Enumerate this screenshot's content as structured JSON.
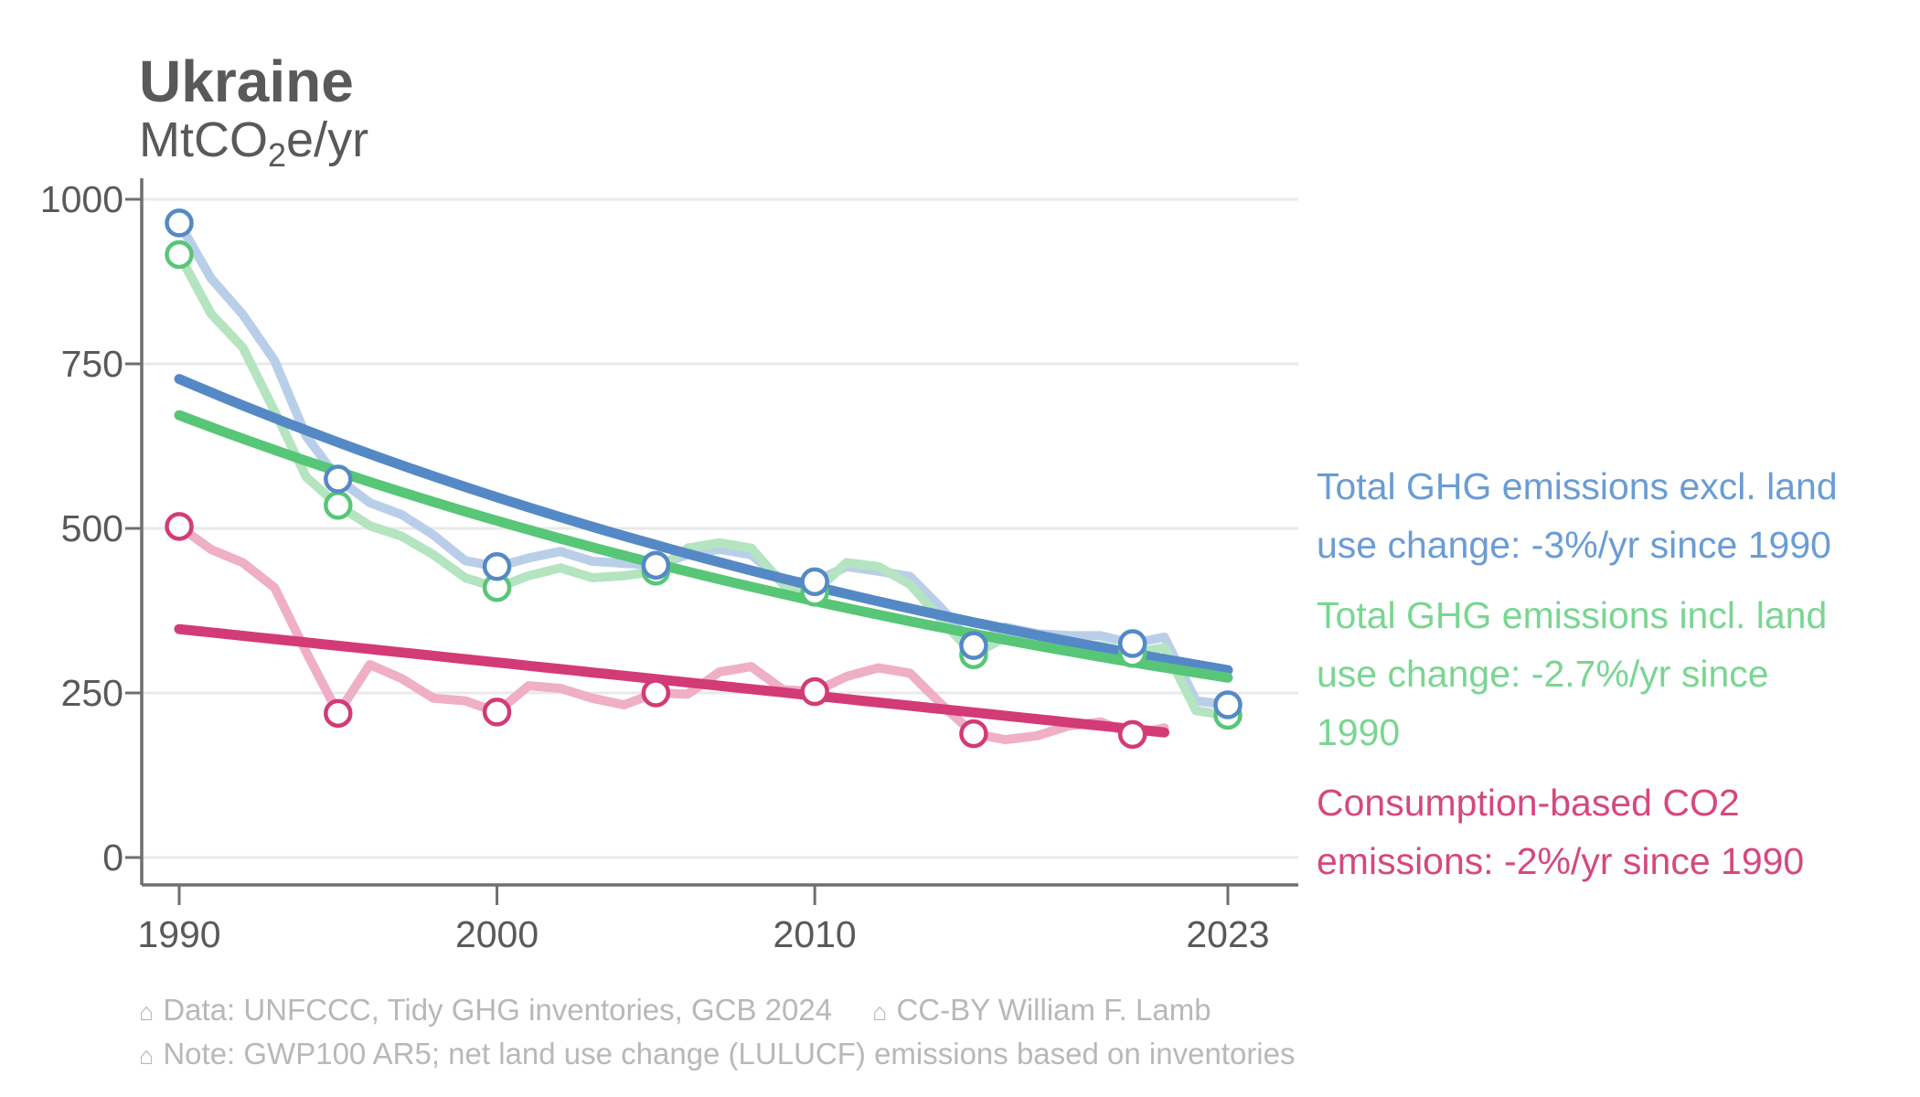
{
  "title": "Ukraine",
  "subtitle": {
    "prefix": "MtCO",
    "sub": "2",
    "suffix": "e/yr"
  },
  "colors": {
    "blue_trend": "#5589c6",
    "blue_light": "#b9cfe9",
    "blue_text": "#6a9cd4",
    "green_trend": "#57c677",
    "green_light": "#b4e4c0",
    "green_text": "#79d691",
    "pink_trend": "#d23b76",
    "pink_light": "#efafc7",
    "pink_text": "#d5487e",
    "axis_line": "#6f6f6f",
    "gridline": "#e9e9e9",
    "tick_label": "#595959",
    "title_text": "#595959",
    "footer_text": "#b8b8b8"
  },
  "legend": {
    "entries": [
      {
        "id": "excl-luc",
        "text": "Total GHG emissions excl. land\nuse change: -3%/yr since 1990",
        "color": "#6a9cd4"
      },
      {
        "id": "incl-luc",
        "text": "Total GHG emissions incl. land\nuse change: -2.7%/yr since\n1990",
        "color": "#79d691"
      },
      {
        "id": "consumption",
        "text": "Consumption-based CO2\nemissions: -2%/yr since 1990",
        "color": "#d5487e"
      }
    ]
  },
  "footer": {
    "icon": "⌂",
    "data_source": "Data: UNFCCC, Tidy GHG inventories, GCB 2024",
    "license": "CC-BY William F. Lamb",
    "note": "Note: GWP100 AR5; net land use change (LULUCF) emissions based on inventories"
  },
  "chart_data": {
    "type": "line",
    "title": "Ukraine",
    "ylabel": "MtCO2e/yr",
    "ylim": [
      0,
      1000
    ],
    "yticks": [
      0,
      250,
      500,
      750,
      1000
    ],
    "xticks": [
      1990,
      2000,
      2010,
      2023
    ],
    "x_range": [
      1990,
      2023
    ],
    "grid": "horizontal",
    "legend_position": "right",
    "series": [
      {
        "name": "Total GHG emissions excl. land use change",
        "trend_note": "-3%/yr since 1990",
        "start_year": 1990,
        "values": [
          964,
          880,
          825,
          755,
          640,
          575,
          539,
          521,
          490,
          451,
          442,
          455,
          465,
          450,
          447,
          444,
          460,
          468,
          460,
          420,
          419,
          442,
          435,
          427,
          378,
          322,
          350,
          340,
          337,
          337,
          325,
          335,
          238,
          232
        ],
        "marker_years": [
          1990,
          1995,
          2000,
          2005,
          2010,
          2015,
          2020,
          2023
        ],
        "trend": {
          "kind": "exponential",
          "start_value": 727,
          "annual_ratio": 0.972,
          "end_year": 2023
        },
        "color": "#5589c6",
        "light_color": "#b9cfe9"
      },
      {
        "name": "Total GHG emissions incl. land use change",
        "trend_note": "-2.7%/yr since 1990",
        "start_year": 1990,
        "values": [
          916,
          826,
          775,
          678,
          578,
          535,
          504,
          488,
          460,
          425,
          410,
          428,
          440,
          425,
          428,
          435,
          470,
          478,
          470,
          415,
          403,
          448,
          442,
          415,
          360,
          308,
          335,
          330,
          324,
          322,
          310,
          319,
          223,
          216
        ],
        "marker_years": [
          1990,
          1995,
          2000,
          2005,
          2010,
          2015,
          2020,
          2023
        ],
        "trend": {
          "kind": "exponential",
          "start_value": 672,
          "annual_ratio": 0.9731,
          "end_year": 2023
        },
        "color": "#57c677",
        "light_color": "#b4e4c0"
      },
      {
        "name": "Consumption-based CO2 emissions",
        "trend_note": "-2%/yr since 1990",
        "start_year": 1990,
        "values": [
          503,
          468,
          448,
          410,
          312,
          219,
          293,
          272,
          242,
          238,
          221,
          261,
          257,
          242,
          232,
          250,
          248,
          282,
          290,
          255,
          252,
          275,
          288,
          280,
          232,
          188,
          179,
          185,
          200,
          206,
          187,
          197
        ],
        "marker_years": [
          1990,
          1995,
          2000,
          2005,
          2010,
          2015,
          2020
        ],
        "trend": {
          "kind": "linear",
          "start_value": 347,
          "end_value": 190,
          "end_year": 2021
        },
        "color": "#d23b76",
        "light_color": "#efafc7"
      }
    ]
  }
}
